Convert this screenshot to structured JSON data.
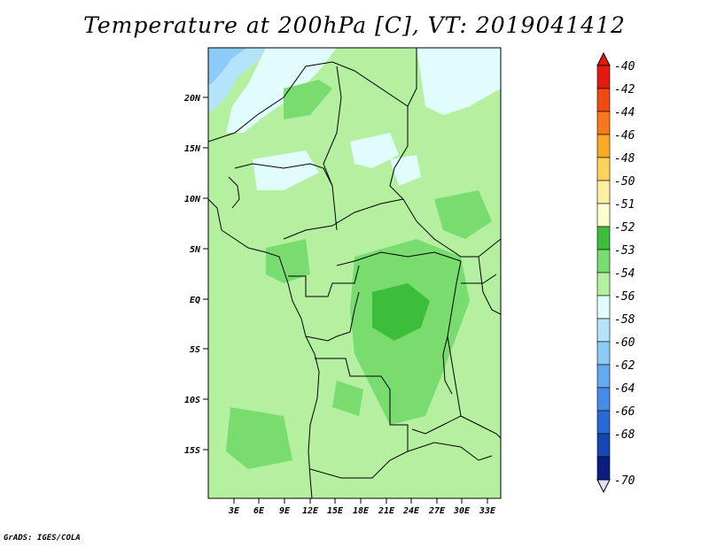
{
  "title": "Temperature at 200hPa [C], VT: 2019041412",
  "footer": "GrADS: IGES/COLA",
  "map": {
    "lon_range": [
      0,
      34.5
    ],
    "lat_range": [
      -19,
      24.5
    ],
    "lat_ticks": [
      {
        "label": "20N"
      },
      {
        "label": "15N"
      },
      {
        "label": "10N"
      },
      {
        "label": "5N"
      },
      {
        "label": "EQ"
      },
      {
        "label": "5S"
      },
      {
        "label": "10S"
      },
      {
        "label": "15S"
      }
    ],
    "lon_ticks": [
      {
        "label": "3E"
      },
      {
        "label": "6E"
      },
      {
        "label": "9E"
      },
      {
        "label": "12E"
      },
      {
        "label": "15E"
      },
      {
        "label": "18E"
      },
      {
        "label": "21E"
      },
      {
        "label": "24E"
      },
      {
        "label": "27E"
      },
      {
        "label": "30E"
      },
      {
        "label": "33E"
      }
    ]
  },
  "colorbar": {
    "levels": [
      {
        "label": "-40",
        "color": "#e21a12"
      },
      {
        "label": "-42",
        "color": "#f04a12"
      },
      {
        "label": "-44",
        "color": "#f8781c"
      },
      {
        "label": "-46",
        "color": "#fba826"
      },
      {
        "label": "-48",
        "color": "#fcd35a"
      },
      {
        "label": "-50",
        "color": "#fdeea0"
      },
      {
        "label": "-51",
        "color": "#fdfdcf"
      },
      {
        "label": "-52",
        "color": "#3cbe3c"
      },
      {
        "label": "-53",
        "color": "#78dc6e"
      },
      {
        "label": "-54",
        "color": "#b4f0a0"
      },
      {
        "label": "-56",
        "color": "#e0fcfc"
      },
      {
        "label": "-58",
        "color": "#b4e4fa"
      },
      {
        "label": "-60",
        "color": "#8ccaf8"
      },
      {
        "label": "-62",
        "color": "#64aaf0"
      },
      {
        "label": "-64",
        "color": "#468ce6"
      },
      {
        "label": "-66",
        "color": "#2a6ad8"
      },
      {
        "label": "-68",
        "color": "#1446b4"
      },
      {
        "label": "-70",
        "color": "#0a1e82"
      }
    ],
    "under_color": "#e0e0f8"
  }
}
